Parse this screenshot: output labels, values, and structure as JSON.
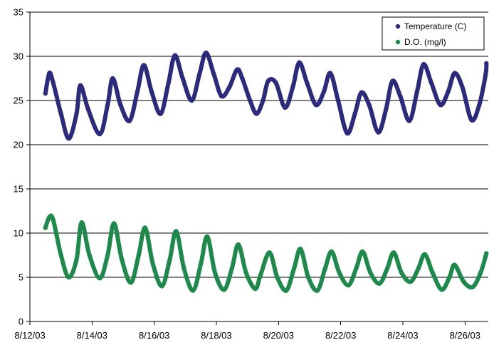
{
  "chart_data": {
    "type": "scatter",
    "title": "",
    "xlabel": "",
    "ylabel": "",
    "ylim": [
      0,
      35
    ],
    "yticks": [
      0,
      5,
      10,
      15,
      20,
      25,
      30,
      35
    ],
    "xlim": [
      "8/12/03",
      "8/26/03 18:00"
    ],
    "xtick_labels": [
      "8/12/03",
      "8/14/03",
      "8/16/03",
      "8/18/03",
      "8/20/03",
      "8/22/03",
      "8/24/03",
      "8/26/03"
    ],
    "grid": "horizontal",
    "legend_position": "top-right",
    "series": [
      {
        "name": "Temperature (C)",
        "color": "#2b2a7c",
        "points": [
          [
            "8/12/03 12:00",
            25.8
          ],
          [
            "8/12/03 15:00",
            28.1
          ],
          [
            "8/12/03 18:00",
            27.0
          ],
          [
            "8/13/03 00:00",
            23.5
          ],
          [
            "8/13/03 06:00",
            20.7
          ],
          [
            "8/13/03 12:00",
            23.5
          ],
          [
            "8/13/03 15:00",
            26.7
          ],
          [
            "8/13/03 21:00",
            24.0
          ],
          [
            "8/14/03 06:00",
            21.2
          ],
          [
            "8/14/03 12:00",
            24.5
          ],
          [
            "8/14/03 16:00",
            27.5
          ],
          [
            "8/14/03 22:00",
            24.5
          ],
          [
            "8/15/03 05:00",
            22.7
          ],
          [
            "8/15/03 11:00",
            26.0
          ],
          [
            "8/15/03 16:00",
            29.0
          ],
          [
            "8/15/03 22:00",
            26.0
          ],
          [
            "8/16/03 05:00",
            23.5
          ],
          [
            "8/16/03 11:00",
            27.0
          ],
          [
            "8/16/03 16:00",
            30.1
          ],
          [
            "8/16/03 22:00",
            27.5
          ],
          [
            "8/17/03 05:00",
            25.0
          ],
          [
            "8/17/03 11:00",
            28.0
          ],
          [
            "8/17/03 16:00",
            30.4
          ],
          [
            "8/17/03 22:00",
            28.0
          ],
          [
            "8/18/03 04:00",
            25.5
          ],
          [
            "8/18/03 10:00",
            26.5
          ],
          [
            "8/18/03 16:00",
            28.5
          ],
          [
            "8/18/03 20:00",
            27.5
          ],
          [
            "8/19/03 02:00",
            25.0
          ],
          [
            "8/19/03 07:00",
            23.5
          ],
          [
            "8/19/03 12:00",
            25.0
          ],
          [
            "8/19/03 16:00",
            27.2
          ],
          [
            "8/19/03 22:00",
            27.0
          ],
          [
            "8/20/03 05:00",
            24.2
          ],
          [
            "8/20/03 11:00",
            26.5
          ],
          [
            "8/20/03 16:00",
            29.3
          ],
          [
            "8/20/03 22:00",
            27.0
          ],
          [
            "8/21/03 05:00",
            24.5
          ],
          [
            "8/21/03 11:00",
            26.0
          ],
          [
            "8/21/03 16:00",
            28.1
          ],
          [
            "8/21/03 22:00",
            25.0
          ],
          [
            "8/22/03 05:00",
            21.3
          ],
          [
            "8/22/03 11:00",
            23.5
          ],
          [
            "8/22/03 16:00",
            25.9
          ],
          [
            "8/22/03 22:00",
            24.5
          ],
          [
            "8/23/03 05:00",
            21.4
          ],
          [
            "8/23/03 11:00",
            24.0
          ],
          [
            "8/23/03 16:00",
            27.2
          ],
          [
            "8/23/03 22:00",
            25.5
          ],
          [
            "8/24/03 05:00",
            22.7
          ],
          [
            "8/24/03 11:00",
            26.0
          ],
          [
            "8/24/03 16:00",
            29.1
          ],
          [
            "8/24/03 22:00",
            27.0
          ],
          [
            "8/25/03 05:00",
            24.5
          ],
          [
            "8/25/03 11:00",
            26.0
          ],
          [
            "8/25/03 16:00",
            28.1
          ],
          [
            "8/25/03 22:00",
            26.5
          ],
          [
            "8/26/03 05:00",
            22.8
          ],
          [
            "8/26/03 11:00",
            24.5
          ],
          [
            "8/26/03 16:00",
            28.0
          ],
          [
            "8/26/03 16:30",
            29.2
          ]
        ]
      },
      {
        "name": "D.O. (mg/l)",
        "color": "#1d8a4c",
        "points": [
          [
            "8/12/03 12:00",
            10.6
          ],
          [
            "8/12/03 15:00",
            11.8
          ],
          [
            "8/12/03 18:00",
            11.5
          ],
          [
            "8/13/03 00:00",
            7.5
          ],
          [
            "8/13/03 06:00",
            5.0
          ],
          [
            "8/13/03 12:00",
            7.0
          ],
          [
            "8/13/03 16:00",
            11.2
          ],
          [
            "8/13/03 22:00",
            7.5
          ],
          [
            "8/14/03 06:00",
            4.9
          ],
          [
            "8/14/03 12:00",
            7.5
          ],
          [
            "8/14/03 17:00",
            11.1
          ],
          [
            "8/14/03 23:00",
            7.0
          ],
          [
            "8/15/03 06:00",
            4.4
          ],
          [
            "8/15/03 12:00",
            7.5
          ],
          [
            "8/15/03 17:00",
            10.6
          ],
          [
            "8/15/03 23:00",
            6.5
          ],
          [
            "8/16/03 06:00",
            4.0
          ],
          [
            "8/16/03 12:00",
            7.0
          ],
          [
            "8/16/03 17:00",
            10.2
          ],
          [
            "8/16/03 23:00",
            6.0
          ],
          [
            "8/17/03 06:00",
            3.5
          ],
          [
            "8/17/03 12:00",
            6.5
          ],
          [
            "8/17/03 17:00",
            9.6
          ],
          [
            "8/17/03 23:00",
            5.5
          ],
          [
            "8/18/03 06:00",
            3.6
          ],
          [
            "8/18/03 12:00",
            6.0
          ],
          [
            "8/18/03 17:00",
            8.7
          ],
          [
            "8/18/03 23:00",
            5.5
          ],
          [
            "8/19/03 06:00",
            3.7
          ],
          [
            "8/19/03 10:00",
            5.2
          ],
          [
            "8/19/03 17:00",
            7.8
          ],
          [
            "8/19/03 23:00",
            5.0
          ],
          [
            "8/20/03 06:00",
            3.5
          ],
          [
            "8/20/03 12:00",
            6.0
          ],
          [
            "8/20/03 17:00",
            8.2
          ],
          [
            "8/20/03 23:00",
            5.0
          ],
          [
            "8/21/03 06:00",
            3.5
          ],
          [
            "8/21/03 12:00",
            6.0
          ],
          [
            "8/21/03 17:00",
            7.9
          ],
          [
            "8/21/03 23:00",
            5.5
          ],
          [
            "8/22/03 06:00",
            4.1
          ],
          [
            "8/22/03 12:00",
            6.0
          ],
          [
            "8/22/03 17:00",
            7.9
          ],
          [
            "8/22/03 23:00",
            5.5
          ],
          [
            "8/23/03 06:00",
            4.3
          ],
          [
            "8/23/03 12:00",
            6.0
          ],
          [
            "8/23/03 17:00",
            7.8
          ],
          [
            "8/23/03 23:00",
            5.5
          ],
          [
            "8/24/03 06:00",
            4.5
          ],
          [
            "8/24/03 12:00",
            6.0
          ],
          [
            "8/24/03 17:00",
            7.6
          ],
          [
            "8/24/03 23:00",
            5.5
          ],
          [
            "8/25/03 06:00",
            3.6
          ],
          [
            "8/25/03 12:00",
            5.0
          ],
          [
            "8/25/03 16:00",
            6.4
          ],
          [
            "8/25/03 23:00",
            4.5
          ],
          [
            "8/26/03 06:00",
            3.9
          ],
          [
            "8/26/03 12:00",
            5.5
          ],
          [
            "8/26/03 16:00",
            7.4
          ],
          [
            "8/26/03 16:30",
            7.7
          ]
        ]
      }
    ]
  }
}
